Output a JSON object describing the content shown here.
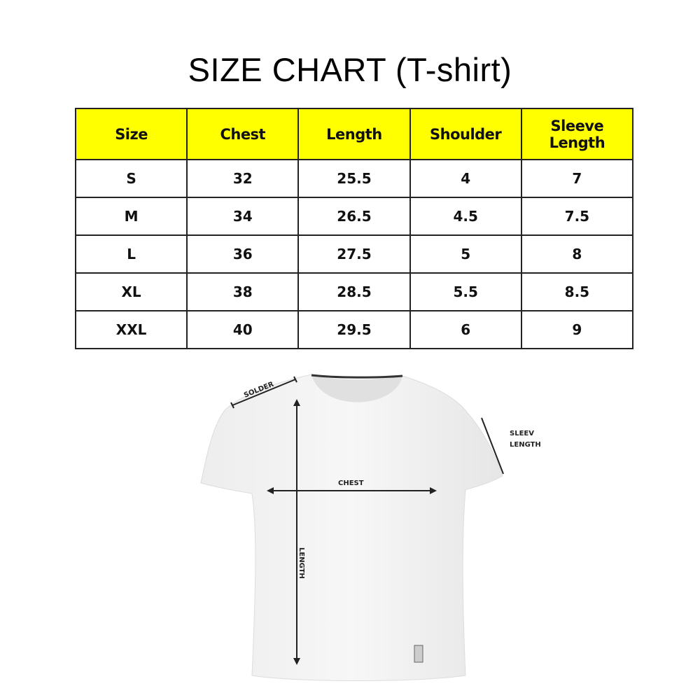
{
  "title": "SIZE CHART (T-shirt)",
  "table": {
    "headers": [
      "Size",
      "Chest",
      "Length",
      "Shoulder",
      "Sleeve Length"
    ],
    "rows": [
      [
        "S",
        "32",
        "25.5",
        "4",
        "7"
      ],
      [
        "M",
        "34",
        "26.5",
        "4.5",
        "7.5"
      ],
      [
        "L",
        "36",
        "27.5",
        "5",
        "8"
      ],
      [
        "XL",
        "38",
        "28.5",
        "5.5",
        "8.5"
      ],
      [
        "XXL",
        "40",
        "29.5",
        "6",
        "9"
      ]
    ],
    "header_color": "#ffff00"
  },
  "diagram": {
    "labels": {
      "shoulder": "SOLDER",
      "chest": "CHEST",
      "length": "LENGTH",
      "sleeve": "SLEEV",
      "sleeve2": "LENGTH"
    }
  }
}
